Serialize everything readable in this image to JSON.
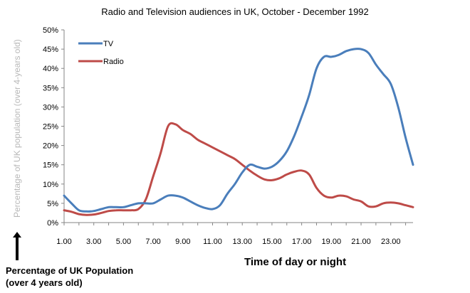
{
  "chart_data": {
    "type": "line",
    "title": "Radio and Television audiences in UK, October - December 1992",
    "ylabel": "Percentage of UK population (over 4-years old)",
    "xlabel": "Time of day or night",
    "side_label_line1": "Percentage of UK Population",
    "side_label_line2": "(over 4 years old)",
    "x_tick_labels": [
      "1.00",
      "3.00",
      "5.00",
      "7.00",
      "9.00",
      "11.00",
      "13.00",
      "15.00",
      "17.00",
      "19.00",
      "21.00",
      "23.00"
    ],
    "x_ticks": [
      1,
      3,
      5,
      7,
      9,
      11,
      13,
      15,
      17,
      19,
      21,
      23
    ],
    "y_tick_labels": [
      "0%",
      "5%",
      "10%",
      "15%",
      "20%",
      "25%",
      "30%",
      "35%",
      "40%",
      "45%",
      "50%"
    ],
    "y_ticks": [
      0,
      5,
      10,
      15,
      20,
      25,
      30,
      35,
      40,
      45,
      50
    ],
    "xlim": [
      1,
      24.5
    ],
    "ylim": [
      0,
      50
    ],
    "grid": false,
    "legend_position": "top-left",
    "series": [
      {
        "name": "TV",
        "color": "#4a7ebb",
        "points": [
          [
            1,
            7
          ],
          [
            1.5,
            5
          ],
          [
            2,
            3.2
          ],
          [
            2.5,
            2.9
          ],
          [
            3,
            3
          ],
          [
            3.5,
            3.5
          ],
          [
            4,
            4
          ],
          [
            4.5,
            4
          ],
          [
            5,
            4
          ],
          [
            5.5,
            4.5
          ],
          [
            6,
            5
          ],
          [
            6.5,
            5
          ],
          [
            7,
            5
          ],
          [
            7.5,
            6
          ],
          [
            8,
            7
          ],
          [
            8.5,
            7
          ],
          [
            9,
            6.5
          ],
          [
            9.5,
            5.5
          ],
          [
            10,
            4.5
          ],
          [
            10.5,
            3.8
          ],
          [
            11,
            3.5
          ],
          [
            11.5,
            4.5
          ],
          [
            12,
            7.5
          ],
          [
            12.5,
            10
          ],
          [
            13,
            13
          ],
          [
            13.5,
            15
          ],
          [
            14,
            14.5
          ],
          [
            14.5,
            14
          ],
          [
            15,
            14.5
          ],
          [
            15.5,
            16
          ],
          [
            16,
            18.5
          ],
          [
            16.5,
            22.5
          ],
          [
            17,
            27.5
          ],
          [
            17.5,
            33
          ],
          [
            18,
            40
          ],
          [
            18.5,
            43
          ],
          [
            19,
            43
          ],
          [
            19.5,
            43.5
          ],
          [
            20,
            44.5
          ],
          [
            20.5,
            45
          ],
          [
            21,
            45
          ],
          [
            21.5,
            44
          ],
          [
            22,
            41
          ],
          [
            22.5,
            38.5
          ],
          [
            23,
            36
          ],
          [
            23.5,
            30
          ],
          [
            24,
            22
          ],
          [
            24.5,
            15
          ]
        ]
      },
      {
        "name": "Radio",
        "color": "#be4b48",
        "points": [
          [
            1,
            3.2
          ],
          [
            1.5,
            2.8
          ],
          [
            2,
            2.2
          ],
          [
            2.5,
            2
          ],
          [
            3,
            2.1
          ],
          [
            3.5,
            2.5
          ],
          [
            4,
            3
          ],
          [
            4.5,
            3.2
          ],
          [
            5,
            3.2
          ],
          [
            5.5,
            3.2
          ],
          [
            6,
            3.5
          ],
          [
            6.5,
            6
          ],
          [
            7,
            12
          ],
          [
            7.5,
            18
          ],
          [
            8,
            25
          ],
          [
            8.5,
            25.5
          ],
          [
            9,
            24
          ],
          [
            9.5,
            23
          ],
          [
            10,
            21.5
          ],
          [
            10.5,
            20.5
          ],
          [
            11,
            19.5
          ],
          [
            11.5,
            18.5
          ],
          [
            12,
            17.5
          ],
          [
            12.5,
            16.5
          ],
          [
            13,
            15
          ],
          [
            13.5,
            13.5
          ],
          [
            14,
            12.2
          ],
          [
            14.5,
            11.2
          ],
          [
            15,
            11
          ],
          [
            15.5,
            11.5
          ],
          [
            16,
            12.5
          ],
          [
            16.5,
            13.2
          ],
          [
            17,
            13.5
          ],
          [
            17.5,
            12.5
          ],
          [
            18,
            9
          ],
          [
            18.5,
            7
          ],
          [
            19,
            6.5
          ],
          [
            19.5,
            7
          ],
          [
            20,
            6.8
          ],
          [
            20.5,
            6
          ],
          [
            21,
            5.5
          ],
          [
            21.5,
            4.2
          ],
          [
            22,
            4.2
          ],
          [
            22.5,
            5
          ],
          [
            23,
            5.2
          ],
          [
            23.5,
            5
          ],
          [
            24,
            4.5
          ],
          [
            24.5,
            4
          ]
        ]
      }
    ]
  }
}
